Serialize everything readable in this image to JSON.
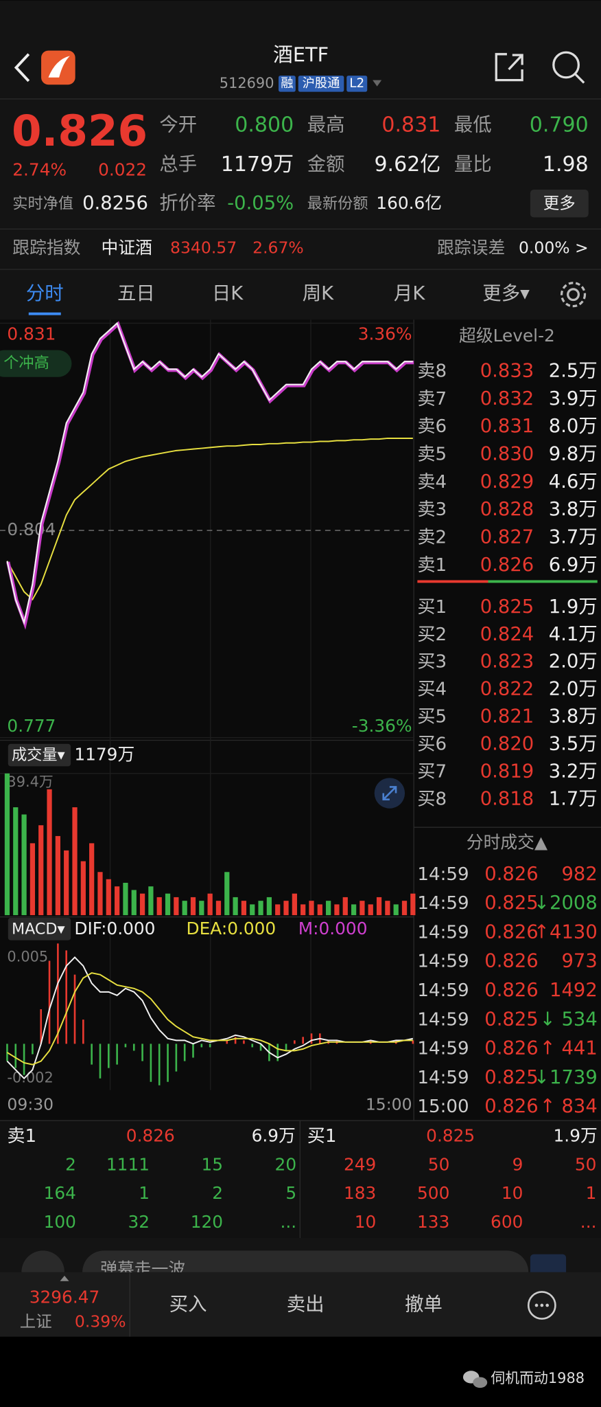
{
  "header": {
    "title": "酒ETF",
    "code": "512690",
    "tags": [
      "融",
      "沪股通",
      "L2"
    ]
  },
  "quote": {
    "price": "0.826",
    "change_pct": "2.74%",
    "change": "0.022",
    "stats": [
      {
        "label": "今开",
        "value": "0.800",
        "color": "#3cb44b"
      },
      {
        "label": "最高",
        "value": "0.831",
        "color": "#e8392f"
      },
      {
        "label": "最低",
        "value": "0.790",
        "color": "#3cb44b"
      },
      {
        "label": "总手",
        "value": "1179万",
        "color": "#eeeeee"
      },
      {
        "label": "金额",
        "value": "9.62亿",
        "color": "#eeeeee"
      },
      {
        "label": "量比",
        "value": "1.98",
        "color": "#eeeeee"
      }
    ],
    "nav_label": "实时净值",
    "nav": "0.8256",
    "discount_label": "折价率",
    "discount": "-0.05%",
    "shares_label": "最新份额",
    "shares": "160.6亿",
    "more": "更多"
  },
  "tracking": {
    "label": "跟踪指数",
    "index": "中证酒",
    "value": "8340.57",
    "pct": "2.67%",
    "error_label": "跟踪误差",
    "error": "0.00% >"
  },
  "tabs": [
    "分时",
    "五日",
    "日K",
    "周K",
    "月K",
    "更多▾"
  ],
  "intraday": {
    "ylim": [
      0.777,
      0.831
    ],
    "yticks": [
      0.831,
      0.804,
      0.777
    ],
    "y2lim": [
      -3.36,
      3.36
    ],
    "y2ticks": [
      {
        "value": 3.36,
        "label": "3.36%"
      },
      {
        "value": -3.36,
        "label": "-3.36%"
      }
    ],
    "annotation": "个冲高",
    "price": [
      0.8,
      0.795,
      0.792,
      0.797,
      0.805,
      0.809,
      0.813,
      0.818,
      0.82,
      0.822,
      0.827,
      0.829,
      0.83,
      0.831,
      0.828,
      0.825,
      0.826,
      0.825,
      0.826,
      0.825,
      0.825,
      0.824,
      0.825,
      0.824,
      0.825,
      0.827,
      0.826,
      0.825,
      0.826,
      0.825,
      0.823,
      0.821,
      0.822,
      0.823,
      0.823,
      0.823,
      0.825,
      0.826,
      0.825,
      0.826,
      0.826,
      0.825,
      0.826,
      0.826,
      0.826,
      0.826,
      0.825,
      0.826,
      0.826
    ],
    "avg": [
      0.8,
      0.798,
      0.796,
      0.795,
      0.797,
      0.8,
      0.803,
      0.806,
      0.808,
      0.809,
      0.81,
      0.811,
      0.812,
      0.8125,
      0.813,
      0.8133,
      0.8136,
      0.8138,
      0.814,
      0.8142,
      0.8144,
      0.8145,
      0.8146,
      0.8147,
      0.8148,
      0.8149,
      0.815,
      0.815,
      0.8151,
      0.8152,
      0.8152,
      0.8153,
      0.8153,
      0.8154,
      0.8154,
      0.8155,
      0.8155,
      0.8156,
      0.8156,
      0.8157,
      0.8157,
      0.8158,
      0.8158,
      0.8159,
      0.8159,
      0.816,
      0.816,
      0.816,
      0.816
    ],
    "vol_header": {
      "label": "成交量▾",
      "value": "1179万"
    },
    "vol_ylim": [
      0,
      39.4
    ],
    "vol_ticks": [
      {
        "value": 39.4,
        "label": "39.4万"
      }
    ],
    "volume": [
      39.4,
      30,
      28,
      20,
      25,
      35,
      22,
      18,
      30,
      15,
      20,
      12,
      10,
      8,
      9,
      7,
      6,
      8,
      5,
      6,
      5,
      4,
      5,
      4,
      6,
      4,
      12,
      5,
      4,
      3,
      4,
      5,
      3,
      4,
      6,
      3,
      4,
      3,
      4,
      3,
      5,
      3,
      4,
      3,
      5,
      4,
      3,
      4,
      6
    ],
    "macd_header": {
      "label": "MACD▾",
      "dif": "DIF:0.000",
      "dea": "DEA:0.000",
      "m": "M:0.000"
    },
    "macd_ylim": [
      -0.002,
      0.005
    ],
    "macd_ticks": [
      0.005,
      -0.002
    ],
    "dif": [
      -0.001,
      -0.0015,
      -0.002,
      -0.0015,
      0,
      0.002,
      0.0035,
      0.0045,
      0.005,
      0.0045,
      0.0035,
      0.003,
      0.003,
      0.0028,
      0.0032,
      0.003,
      0.0025,
      0.0015,
      0.0008,
      0.0003,
      0.0002,
      0.0002,
      0,
      0.0002,
      0.0001,
      0.0002,
      0.0003,
      0.0005,
      0.0004,
      0.0002,
      0,
      -0.0005,
      -0.0008,
      -0.0006,
      -0.0003,
      -0.0001,
      0.0002,
      0.0003,
      0.0002,
      0.0002,
      0.0001,
      0.0001,
      0.0001,
      0.0002,
      0.0001,
      0.0001,
      0.0002,
      0.0002,
      0.0003
    ],
    "dea": [
      -0.0005,
      -0.0008,
      -0.0011,
      -0.0012,
      -0.001,
      -0.0004,
      0.0006,
      0.0018,
      0.003,
      0.0038,
      0.0041,
      0.004,
      0.0037,
      0.0034,
      0.0033,
      0.0032,
      0.003,
      0.0026,
      0.002,
      0.0014,
      0.001,
      0.0007,
      0.0004,
      0.0003,
      0.0002,
      0.0002,
      0.0002,
      0.0003,
      0.0003,
      0.0003,
      0.0002,
      0,
      -0.0003,
      -0.0004,
      -0.0004,
      -0.0003,
      -0.0001,
      0,
      0.0001,
      0.0001,
      0.0001,
      0.0001,
      0.0001,
      0.0001,
      0.0001,
      0.0001,
      0.0001,
      0.0002,
      0.0002
    ],
    "time_labels": [
      "09:30",
      "15:00"
    ]
  },
  "order_book": {
    "title": "超级Level-2",
    "asks": [
      {
        "label": "卖8",
        "price": "0.833",
        "vol": "2.5万"
      },
      {
        "label": "卖7",
        "price": "0.832",
        "vol": "3.9万"
      },
      {
        "label": "卖6",
        "price": "0.831",
        "vol": "8.0万"
      },
      {
        "label": "卖5",
        "price": "0.830",
        "vol": "9.8万"
      },
      {
        "label": "卖4",
        "price": "0.829",
        "vol": "4.6万"
      },
      {
        "label": "卖3",
        "price": "0.828",
        "vol": "3.8万"
      },
      {
        "label": "卖2",
        "price": "0.827",
        "vol": "3.7万"
      },
      {
        "label": "卖1",
        "price": "0.826",
        "vol": "6.9万"
      }
    ],
    "bids": [
      {
        "label": "买1",
        "price": "0.825",
        "vol": "1.9万"
      },
      {
        "label": "买2",
        "price": "0.824",
        "vol": "4.1万"
      },
      {
        "label": "买3",
        "price": "0.823",
        "vol": "2.0万"
      },
      {
        "label": "买4",
        "price": "0.822",
        "vol": "2.0万"
      },
      {
        "label": "买5",
        "price": "0.821",
        "vol": "3.8万"
      },
      {
        "label": "买6",
        "price": "0.820",
        "vol": "3.5万"
      },
      {
        "label": "买7",
        "price": "0.819",
        "vol": "3.2万"
      },
      {
        "label": "买8",
        "price": "0.818",
        "vol": "1.7万"
      }
    ]
  },
  "trades": {
    "title": "分时成交▲",
    "rows": [
      {
        "time": "14:59",
        "price": "0.826",
        "vol": "982",
        "color": "#e8392f"
      },
      {
        "time": "14:59",
        "price": "0.825",
        "vol": "↓2008",
        "color": "#3cb44b"
      },
      {
        "time": "14:59",
        "price": "0.826",
        "vol": "↑4130",
        "color": "#e8392f"
      },
      {
        "time": "14:59",
        "price": "0.826",
        "vol": "973",
        "color": "#e8392f"
      },
      {
        "time": "14:59",
        "price": "0.826",
        "vol": "1492",
        "color": "#e8392f"
      },
      {
        "time": "14:59",
        "price": "0.825",
        "vol": "↓ 534",
        "color": "#3cb44b"
      },
      {
        "time": "14:59",
        "price": "0.826",
        "vol": "↑ 441",
        "color": "#e8392f"
      },
      {
        "time": "14:59",
        "price": "0.825",
        "vol": "↓1739",
        "color": "#3cb44b"
      },
      {
        "time": "15:00",
        "price": "0.826",
        "vol": "↑ 834",
        "color": "#e8392f"
      }
    ]
  },
  "queues": [
    {
      "label": "卖1",
      "price": "0.826",
      "vol": "6.9万",
      "color": "#3cb44b",
      "rows": [
        [
          "2",
          "1111",
          "15",
          "20"
        ],
        [
          "164",
          "1",
          "2",
          "5"
        ],
        [
          "100",
          "32",
          "120",
          "..."
        ]
      ]
    },
    {
      "label": "买1",
      "price": "0.825",
      "vol": "1.9万",
      "color": "#e8392f",
      "rows": [
        [
          "249",
          "50",
          "9",
          "50"
        ],
        [
          "183",
          "500",
          "10",
          "1"
        ],
        [
          "10",
          "133",
          "600",
          "..."
        ]
      ]
    }
  ],
  "comment_placeholder": "弹幕走一波",
  "toolbar": {
    "index_value": "3296.47",
    "index_name": "上证",
    "index_pct": "0.39%",
    "buttons": [
      "买入",
      "卖出",
      "撤单"
    ]
  },
  "watermark": "伺机而动1988"
}
